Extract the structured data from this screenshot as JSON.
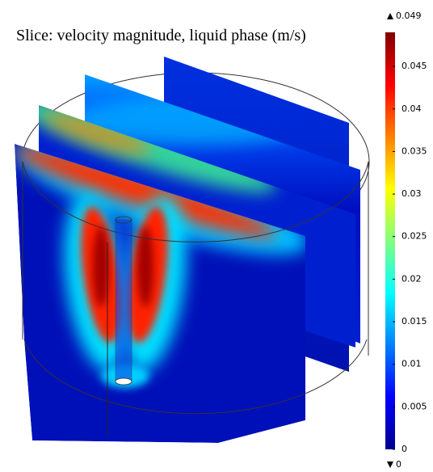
{
  "chart_data": {
    "type": "slice",
    "title": "Slice: velocity magnitude, liquid phase (m/s)",
    "color_range": [
      0,
      0.049
    ],
    "ticks": [
      0,
      0.005,
      0.01,
      0.015,
      0.02,
      0.025,
      0.03,
      0.035,
      0.04,
      0.045
    ],
    "colormap": [
      "#00008f",
      "#0000ff",
      "#0080ff",
      "#00ffff",
      "#80ff80",
      "#ffff00",
      "#ff8000",
      "#ff0000",
      "#800000"
    ]
  }
}
